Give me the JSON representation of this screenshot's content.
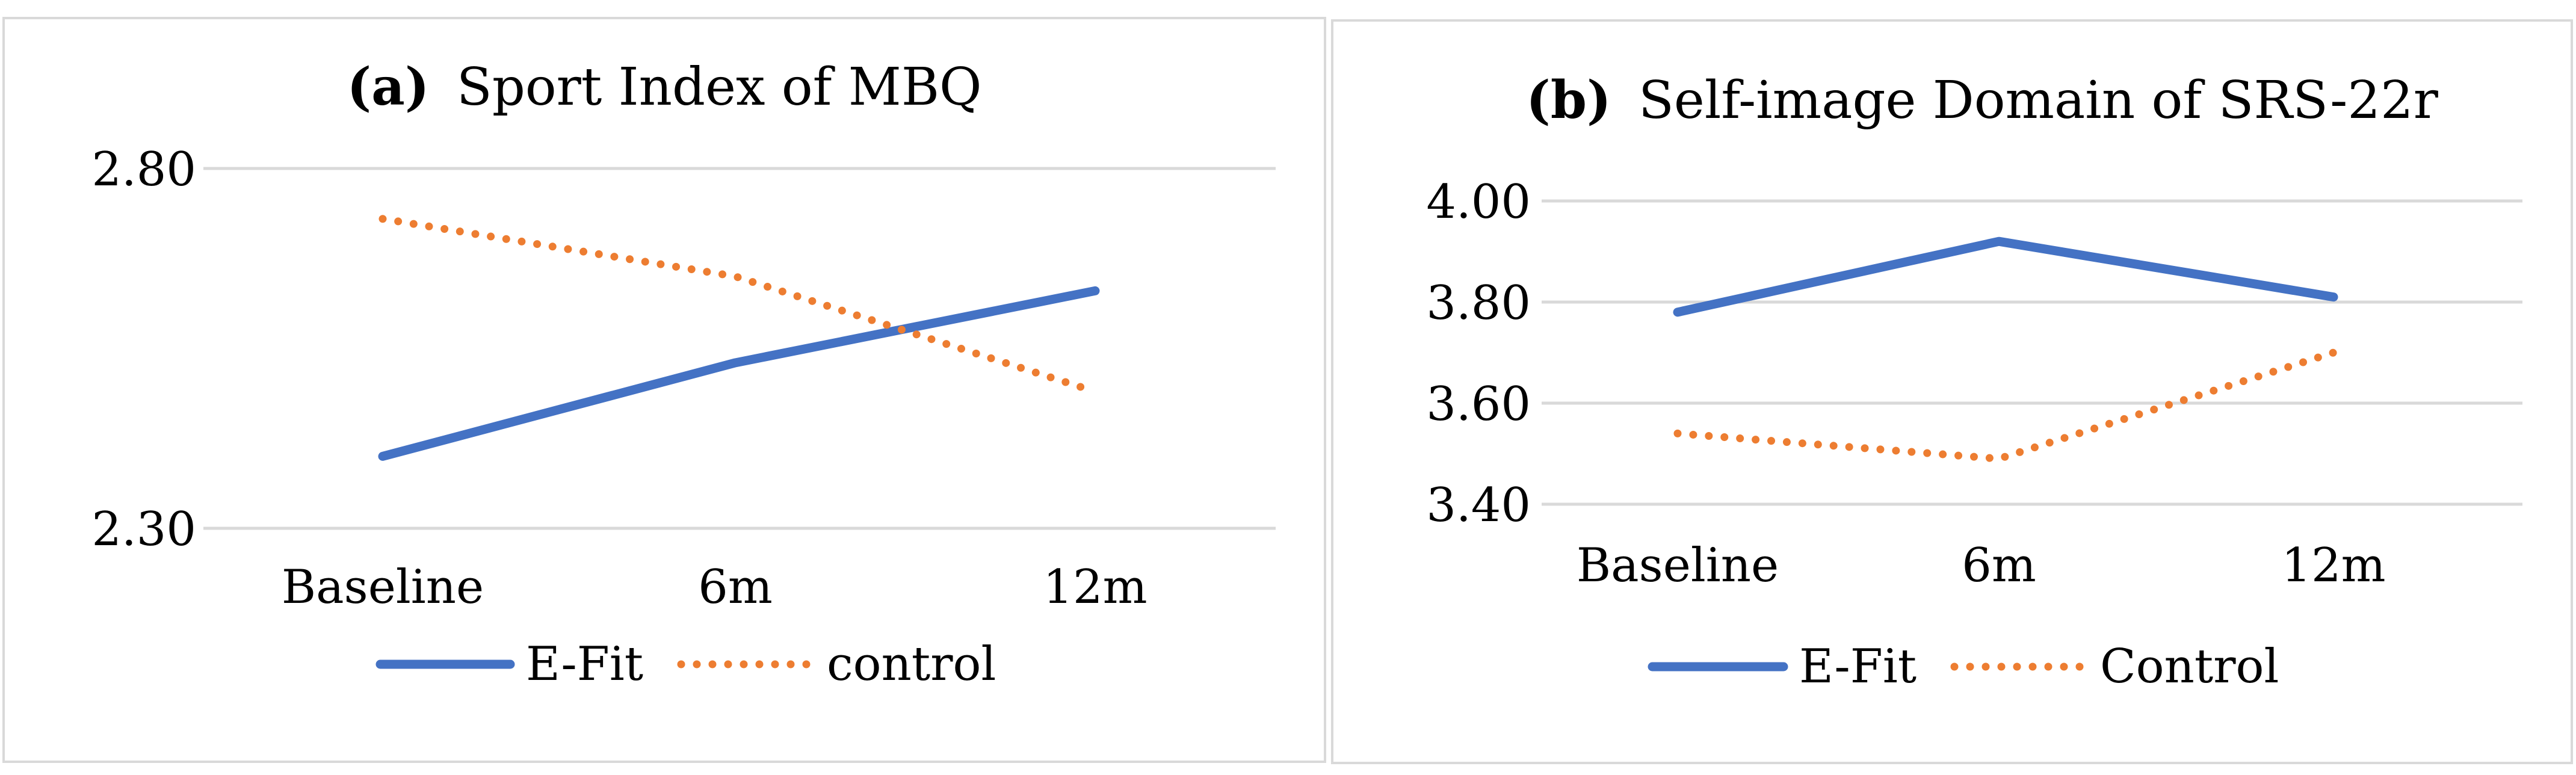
{
  "chart_data": [
    {
      "type": "line",
      "panel_label": "(a)",
      "title": "Sport Index of MBQ",
      "categories": [
        "Baseline",
        "6m",
        "12m"
      ],
      "series": [
        {
          "name": "E-Fit",
          "values": [
            2.4,
            2.53,
            2.63
          ],
          "color": "#4472c4",
          "style": "solid"
        },
        {
          "name": "control",
          "values": [
            2.73,
            2.65,
            2.49
          ],
          "color": "#ed7d31",
          "style": "dotted"
        }
      ],
      "y_ticks": [
        2.8,
        2.3
      ],
      "y_tick_labels": [
        "2.80",
        "2.30"
      ],
      "ylim": [
        2.3,
        2.8
      ],
      "grid": true,
      "legend": "bottom"
    },
    {
      "type": "line",
      "panel_label": "(b)",
      "title": "Self-image Domain of SRS-22r",
      "categories": [
        "Baseline",
        "6m",
        "12m"
      ],
      "series": [
        {
          "name": "E-Fit",
          "values": [
            3.78,
            3.92,
            3.81
          ],
          "color": "#4472c4",
          "style": "solid"
        },
        {
          "name": "Control",
          "values": [
            3.54,
            3.49,
            3.7
          ],
          "color": "#ed7d31",
          "style": "dotted"
        }
      ],
      "y_ticks": [
        4.0,
        3.8,
        3.6,
        3.4
      ],
      "y_tick_labels": [
        "4.00",
        "3.80",
        "3.60",
        "3.40"
      ],
      "ylim": [
        3.4,
        4.0
      ],
      "grid": true,
      "legend": "bottom"
    }
  ]
}
